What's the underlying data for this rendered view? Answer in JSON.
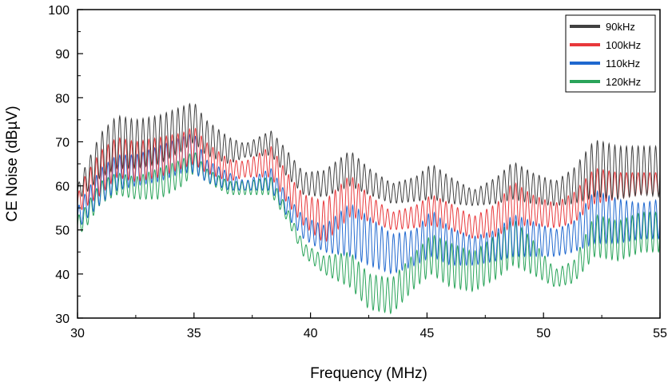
{
  "chart_data": {
    "type": "line",
    "xlabel": "Frequency (MHz)",
    "ylabel": "CE Noise (dBµV)",
    "xlim": [
      30,
      55
    ],
    "ylim": [
      30,
      100
    ],
    "xticks": [
      30,
      35,
      40,
      45,
      50,
      55
    ],
    "yticks": [
      30,
      40,
      50,
      60,
      70,
      80,
      90,
      100
    ],
    "grid": false,
    "legend_position": "top-right",
    "ripple_period_mhz": 0.25,
    "series": [
      {
        "name": "90kHz",
        "color": "#404040",
        "envelope_x": [
          30,
          30.3,
          31,
          31.7,
          32.5,
          33.5,
          34.5,
          35,
          35.5,
          36.5,
          37.2,
          38.3,
          39,
          39.7,
          40.6,
          41.7,
          42.5,
          43.5,
          44.5,
          45.2,
          46,
          47,
          48,
          48.7,
          49.5,
          50.5,
          51.3,
          52.2,
          53.2,
          54.2,
          55
        ],
        "envelope_upper": [
          60,
          64,
          72,
          76,
          75,
          76,
          78,
          79,
          75,
          71,
          69.5,
          72.5,
          68,
          63,
          63.5,
          68,
          64,
          60.5,
          62,
          65,
          62,
          59,
          62,
          65.5,
          63,
          61,
          64,
          70.5,
          69,
          69,
          69
        ],
        "envelope_lower": [
          57,
          58,
          62,
          64,
          64,
          65,
          68,
          70,
          67,
          65,
          66.5,
          67,
          62,
          58,
          57.5,
          60,
          58,
          56,
          56.5,
          57,
          56,
          55.5,
          56,
          57,
          56,
          55.5,
          56,
          57.5,
          57,
          58,
          57.5
        ]
      },
      {
        "name": "100kHz",
        "color": "#e8383b",
        "envelope_x": [
          30,
          30.3,
          31,
          31.7,
          32.5,
          33.5,
          34.5,
          35,
          35.5,
          36.5,
          37.2,
          38.3,
          39,
          39.7,
          40.6,
          41.7,
          42.5,
          43.5,
          44.5,
          45.2,
          46,
          47,
          48,
          48.7,
          49.5,
          50.5,
          51.3,
          52.2,
          53.2,
          54.2,
          55
        ],
        "envelope_upper": [
          58,
          62,
          68,
          71,
          70,
          71,
          72,
          73.5,
          70,
          66,
          65.5,
          69,
          63,
          58,
          56.5,
          62.5,
          58,
          54,
          55.5,
          58,
          56,
          53,
          56,
          61,
          58,
          56,
          58.5,
          64,
          63,
          63,
          63
        ],
        "envelope_lower": [
          54,
          55,
          58,
          62,
          61,
          62,
          64,
          65,
          63,
          61,
          62,
          62,
          56,
          51,
          47,
          53,
          52,
          50,
          50.5,
          51,
          50,
          48,
          48.5,
          51,
          51,
          50.5,
          51.5,
          56,
          57,
          58,
          58
        ]
      },
      {
        "name": "110kHz",
        "color": "#1f68cf",
        "envelope_x": [
          30,
          30.3,
          31,
          31.7,
          32.5,
          33.5,
          34.5,
          35,
          35.5,
          36.5,
          37.2,
          38.3,
          39,
          39.7,
          40.6,
          41.7,
          42.5,
          43.5,
          44.5,
          45.2,
          46,
          47,
          48,
          48.7,
          49.5,
          50.5,
          51.3,
          52.2,
          53.2,
          54.2,
          55
        ],
        "envelope_upper": [
          55,
          58,
          64,
          67,
          67,
          69,
          71,
          72,
          66,
          63,
          61,
          64,
          58,
          53,
          51,
          56,
          53,
          49,
          50,
          54.5,
          50.5,
          48.5,
          50,
          53.5,
          52,
          50,
          52,
          59,
          57,
          56,
          57
        ],
        "envelope_lower": [
          50,
          52,
          56,
          59,
          60,
          61,
          63,
          63,
          61,
          59,
          59,
          59,
          53,
          48,
          45,
          44,
          42,
          40,
          42,
          44,
          42,
          42,
          43,
          44,
          44,
          44,
          45,
          47,
          47,
          48,
          48
        ]
      },
      {
        "name": "120kHz",
        "color": "#2aa45a",
        "envelope_x": [
          30,
          30.3,
          31,
          31.7,
          32.5,
          33.5,
          34.5,
          35,
          35.5,
          36.5,
          37.2,
          38.3,
          39,
          39.7,
          40.6,
          41.7,
          42.5,
          43.5,
          44.5,
          45.2,
          46,
          47,
          48,
          48.7,
          49.5,
          50.5,
          51.3,
          52.2,
          53.2,
          54.2,
          55
        ],
        "envelope_upper": [
          53,
          55,
          61,
          63,
          62,
          64,
          66,
          68,
          64,
          61,
          61,
          62,
          55,
          47,
          44,
          45,
          40,
          39,
          45,
          49,
          47,
          45,
          49,
          52.5,
          48,
          41,
          43,
          53.5,
          52,
          54,
          54
        ],
        "envelope_lower": [
          49,
          50,
          56,
          58,
          57,
          57,
          60,
          63,
          61,
          58,
          58,
          58,
          52,
          44,
          40,
          37,
          32,
          31,
          37,
          40,
          37,
          36,
          39,
          42,
          40,
          37,
          38,
          44,
          43,
          45,
          45
        ]
      }
    ]
  }
}
